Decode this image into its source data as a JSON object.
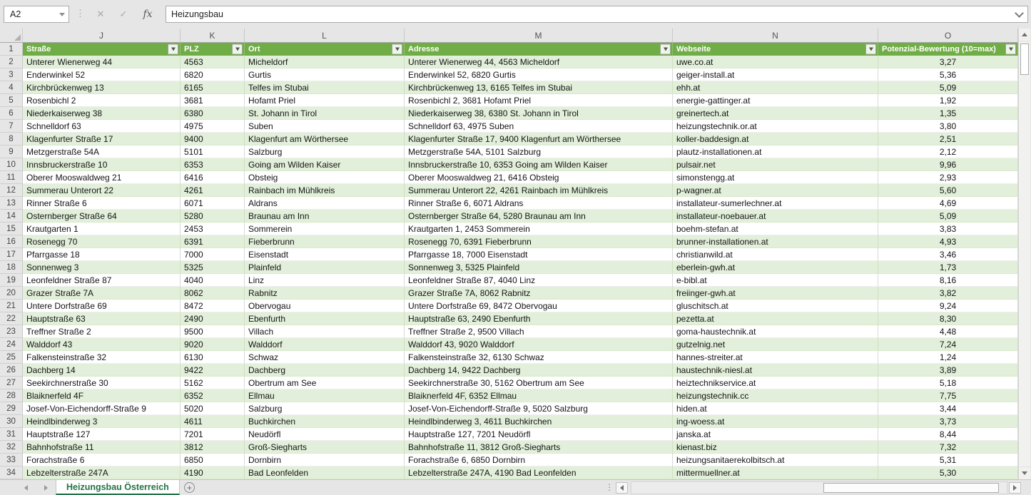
{
  "formula_bar": {
    "name_box": "A2",
    "value": "Heizungsbau"
  },
  "colors": {
    "header_green": "#70AD47",
    "band_green": "#E2EFDA",
    "tab_green": "#217346"
  },
  "sheet": {
    "column_letters": [
      "J",
      "K",
      "L",
      "M",
      "N",
      "O"
    ],
    "header": [
      "Straße",
      "PLZ",
      "Ort",
      "Adresse",
      "Webseite",
      "Potenzial-Bewertung (10=max)"
    ],
    "rows": [
      {
        "n": 2,
        "strasse": "Unterer Wienerweg 44",
        "plz": "4563",
        "ort": "Micheldorf",
        "adresse": "Unterer Wienerweg 44, 4563 Micheldorf",
        "webseite": "uwe.co.at",
        "rating": "3,27"
      },
      {
        "n": 3,
        "strasse": "Enderwinkel 52",
        "plz": "6820",
        "ort": "Gurtis",
        "adresse": "Enderwinkel 52, 6820 Gurtis",
        "webseite": "geiger-install.at",
        "rating": "5,36"
      },
      {
        "n": 4,
        "strasse": "Kirchbrückenweg 13",
        "plz": "6165",
        "ort": "Telfes im Stubai",
        "adresse": "Kirchbrückenweg 13, 6165 Telfes im Stubai",
        "webseite": "ehh.at",
        "rating": "5,09"
      },
      {
        "n": 5,
        "strasse": "Rosenbichl 2",
        "plz": "3681",
        "ort": "Hofamt Priel",
        "adresse": "Rosenbichl 2, 3681 Hofamt Priel",
        "webseite": "energie-gattinger.at",
        "rating": "1,92"
      },
      {
        "n": 6,
        "strasse": "Niederkaiserweg 38",
        "plz": "6380",
        "ort": "St. Johann in Tirol",
        "adresse": "Niederkaiserweg 38, 6380 St. Johann in Tirol",
        "webseite": "greinertech.at",
        "rating": "1,35"
      },
      {
        "n": 7,
        "strasse": "Schnelldorf 63",
        "plz": "4975",
        "ort": "Suben",
        "adresse": "Schnelldorf 63, 4975 Suben",
        "webseite": "heizungstechnik.or.at",
        "rating": "3,80"
      },
      {
        "n": 8,
        "strasse": "Klagenfurter Straße 17",
        "plz": "9400",
        "ort": "Klagenfurt am Wörthersee",
        "adresse": "Klagenfurter Straße 17, 9400 Klagenfurt am Wörthersee",
        "webseite": "koller-baddesign.at",
        "rating": "2,51"
      },
      {
        "n": 9,
        "strasse": "Metzgerstraße 54A",
        "plz": "5101",
        "ort": "Salzburg",
        "adresse": "Metzgerstraße 54A, 5101 Salzburg",
        "webseite": "plautz-installationen.at",
        "rating": "2,12"
      },
      {
        "n": 10,
        "strasse": "Innsbruckerstraße 10",
        "plz": "6353",
        "ort": "Going am Wilden Kaiser",
        "adresse": "Innsbruckerstraße 10, 6353 Going am Wilden Kaiser",
        "webseite": "pulsair.net",
        "rating": "9,96"
      },
      {
        "n": 11,
        "strasse": "Oberer Mooswaldweg 21",
        "plz": "6416",
        "ort": "Obsteig",
        "adresse": "Oberer Mooswaldweg 21, 6416 Obsteig",
        "webseite": "simonstengg.at",
        "rating": "2,93"
      },
      {
        "n": 12,
        "strasse": "Summerau Unterort 22",
        "plz": "4261",
        "ort": "Rainbach im Mühlkreis",
        "adresse": "Summerau Unterort 22, 4261 Rainbach im Mühlkreis",
        "webseite": "p-wagner.at",
        "rating": "5,60"
      },
      {
        "n": 13,
        "strasse": "Rinner Straße 6",
        "plz": "6071",
        "ort": "Aldrans",
        "adresse": "Rinner Straße 6, 6071 Aldrans",
        "webseite": "installateur-sumerlechner.at",
        "rating": "4,69"
      },
      {
        "n": 14,
        "strasse": "Osternberger Straße 64",
        "plz": "5280",
        "ort": "Braunau am Inn",
        "adresse": "Osternberger Straße 64, 5280 Braunau am Inn",
        "webseite": "installateur-noebauer.at",
        "rating": "5,09"
      },
      {
        "n": 15,
        "strasse": "Krautgarten 1",
        "plz": "2453",
        "ort": "Sommerein",
        "adresse": "Krautgarten 1, 2453 Sommerein",
        "webseite": "boehm-stefan.at",
        "rating": "3,83"
      },
      {
        "n": 16,
        "strasse": "Rosenegg 70",
        "plz": "6391",
        "ort": "Fieberbrunn",
        "adresse": "Rosenegg 70, 6391 Fieberbrunn",
        "webseite": "brunner-installationen.at",
        "rating": "4,93"
      },
      {
        "n": 17,
        "strasse": "Pfarrgasse 18",
        "plz": "7000",
        "ort": "Eisenstadt",
        "adresse": "Pfarrgasse 18, 7000 Eisenstadt",
        "webseite": "christianwild.at",
        "rating": "3,46"
      },
      {
        "n": 18,
        "strasse": "Sonnenweg 3",
        "plz": "5325",
        "ort": "Plainfeld",
        "adresse": "Sonnenweg 3, 5325 Plainfeld",
        "webseite": "eberlein-gwh.at",
        "rating": "1,73"
      },
      {
        "n": 19,
        "strasse": "Leonfeldner Straße 87",
        "plz": "4040",
        "ort": "Linz",
        "adresse": "Leonfeldner Straße 87, 4040 Linz",
        "webseite": "e-bibl.at",
        "rating": "8,16"
      },
      {
        "n": 20,
        "strasse": "Grazer Straße 7A",
        "plz": "8062",
        "ort": "Rabnitz",
        "adresse": "Grazer Straße 7A, 8062 Rabnitz",
        "webseite": "freiinger-gwh.at",
        "rating": "3,82"
      },
      {
        "n": 21,
        "strasse": "Untere Dorfstraße 69",
        "plz": "8472",
        "ort": "Obervogau",
        "adresse": "Untere Dorfstraße 69, 8472 Obervogau",
        "webseite": "gluschitsch.at",
        "rating": "9,24"
      },
      {
        "n": 22,
        "strasse": "Hauptstraße 63",
        "plz": "2490",
        "ort": "Ebenfurth",
        "adresse": "Hauptstraße 63, 2490 Ebenfurth",
        "webseite": "pezetta.at",
        "rating": "8,30"
      },
      {
        "n": 23,
        "strasse": "Treffner Straße 2",
        "plz": "9500",
        "ort": "Villach",
        "adresse": "Treffner Straße 2, 9500 Villach",
        "webseite": "goma-haustechnik.at",
        "rating": "4,48"
      },
      {
        "n": 24,
        "strasse": "Walddorf 43",
        "plz": "9020",
        "ort": "Walddorf",
        "adresse": "Walddorf 43, 9020 Walddorf",
        "webseite": "gutzelnig.net",
        "rating": "7,24"
      },
      {
        "n": 25,
        "strasse": "Falkensteinstraße 32",
        "plz": "6130",
        "ort": "Schwaz",
        "adresse": "Falkensteinstraße 32, 6130 Schwaz",
        "webseite": "hannes-streiter.at",
        "rating": "1,24"
      },
      {
        "n": 26,
        "strasse": "Dachberg 14",
        "plz": "9422",
        "ort": "Dachberg",
        "adresse": "Dachberg 14, 9422 Dachberg",
        "webseite": "haustechnik-niesl.at",
        "rating": "3,89"
      },
      {
        "n": 27,
        "strasse": "Seekirchnerstraße 30",
        "plz": "5162",
        "ort": "Obertrum am See",
        "adresse": "Seekirchnerstraße 30, 5162 Obertrum am See",
        "webseite": "heiztechnikservice.at",
        "rating": "5,18"
      },
      {
        "n": 28,
        "strasse": "Blaiknerfeld 4F",
        "plz": "6352",
        "ort": "Ellmau",
        "adresse": "Blaiknerfeld 4F, 6352 Ellmau",
        "webseite": "heizungstechnik.cc",
        "rating": "7,75"
      },
      {
        "n": 29,
        "strasse": "Josef-Von-Eichendorff-Straße 9",
        "plz": "5020",
        "ort": "Salzburg",
        "adresse": "Josef-Von-Eichendorff-Straße 9, 5020 Salzburg",
        "webseite": "hiden.at",
        "rating": "3,44"
      },
      {
        "n": 30,
        "strasse": "Heindlbinderweg 3",
        "plz": "4611",
        "ort": "Buchkirchen",
        "adresse": "Heindlbinderweg 3, 4611 Buchkirchen",
        "webseite": "ing-woess.at",
        "rating": "3,73"
      },
      {
        "n": 31,
        "strasse": "Hauptstraße 127",
        "plz": "7201",
        "ort": "Neudörfl",
        "adresse": "Hauptstraße 127, 7201 Neudörfl",
        "webseite": "janska.at",
        "rating": "8,44"
      },
      {
        "n": 32,
        "strasse": "Bahnhofstraße 11",
        "plz": "3812",
        "ort": "Groß-Siegharts",
        "adresse": "Bahnhofstraße 11, 3812 Groß-Siegharts",
        "webseite": "kienast.biz",
        "rating": "7,32"
      },
      {
        "n": 33,
        "strasse": "Forachstraße 6",
        "plz": "6850",
        "ort": "Dornbirn",
        "adresse": "Forachstraße 6, 6850 Dornbirn",
        "webseite": "heizungsanitaerekolbitsch.at",
        "rating": "5,31"
      },
      {
        "n": 34,
        "strasse": "Lebzelterstraße 247A",
        "plz": "4190",
        "ort": "Bad Leonfelden",
        "adresse": "Lebzelterstraße 247A, 4190 Bad Leonfelden",
        "webseite": "mittermuellner.at",
        "rating": "5,30"
      }
    ]
  },
  "tabbar": {
    "active_tab": "Heizungsbau Österreich",
    "add_label": "+"
  }
}
